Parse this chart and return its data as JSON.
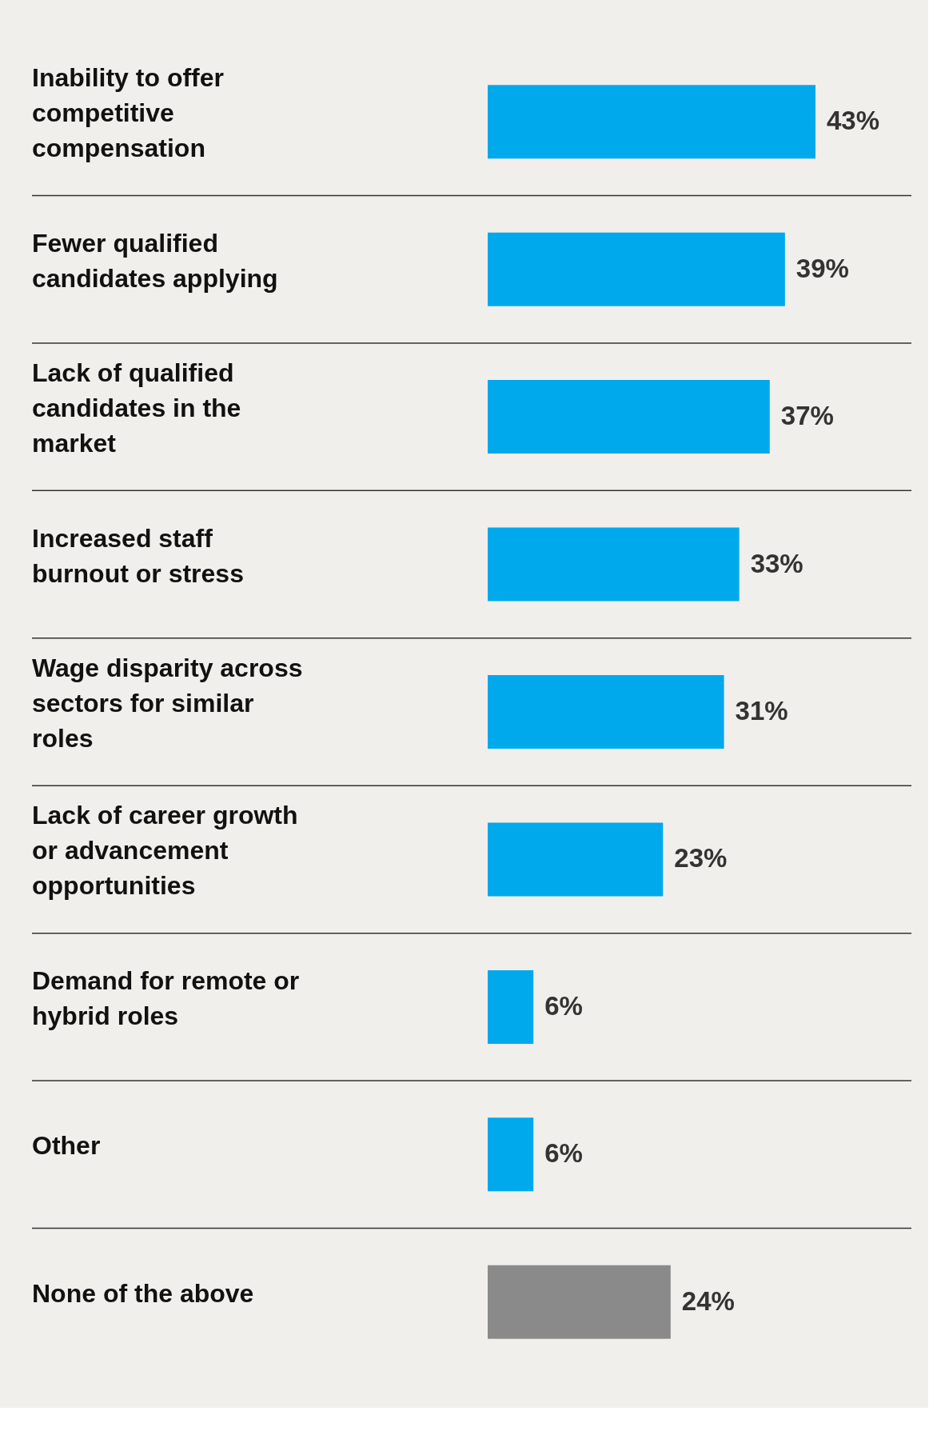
{
  "chart_data": {
    "type": "bar",
    "orientation": "horizontal",
    "categories": [
      "Inability to offer competitive compensation",
      "Fewer qualified candidates applying",
      "Lack of qualified candidates in the market",
      "Increased staff burnout or stress",
      "Wage disparity across sectors for similar roles",
      "Lack of career growth or advancement opportunities",
      "Demand for remote or hybrid roles",
      "Other",
      "None of the above"
    ],
    "values": [
      43,
      39,
      37,
      33,
      31,
      23,
      6,
      6,
      24
    ],
    "value_labels": [
      "43%",
      "39%",
      "37%",
      "33%",
      "31%",
      "23%",
      "6%",
      "6%",
      "24%"
    ],
    "colors": [
      "#00a9ec",
      "#00a9ec",
      "#00a9ec",
      "#00a9ec",
      "#00a9ec",
      "#00a9ec",
      "#00a9ec",
      "#00a9ec",
      "#8a8a8a"
    ],
    "grid": "y"
  }
}
